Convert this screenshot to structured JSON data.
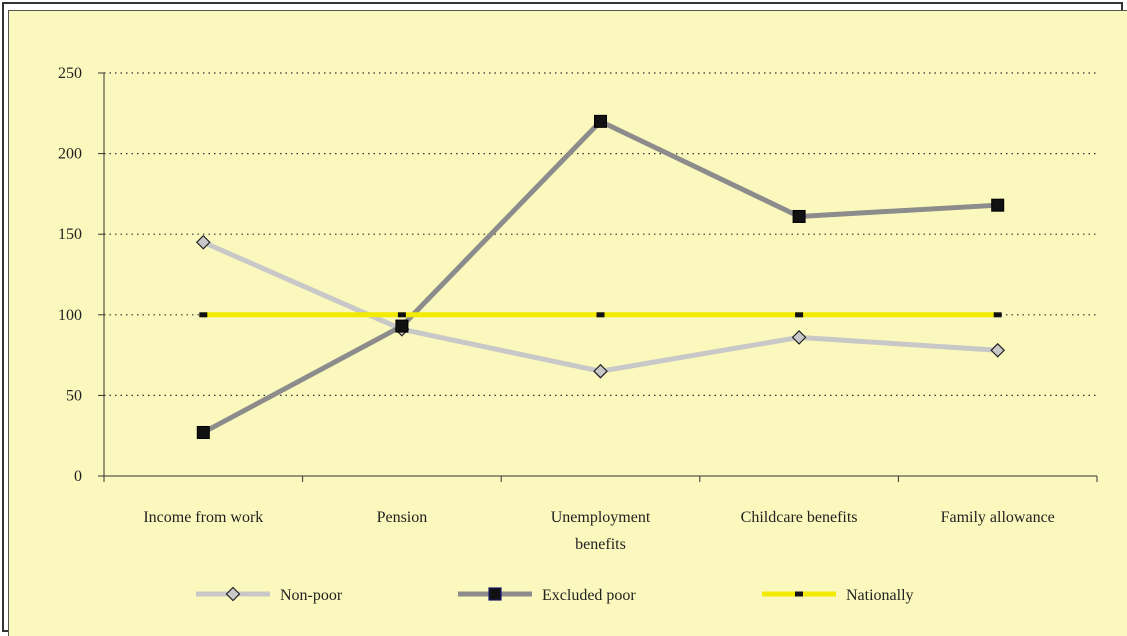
{
  "chart_data": {
    "type": "line",
    "categories": [
      [
        "Income from work"
      ],
      [
        "Pension"
      ],
      [
        "Unemployment",
        "benefits"
      ],
      [
        "Childcare benefits"
      ],
      [
        "Family allowance"
      ]
    ],
    "ylim": [
      0,
      250
    ],
    "yticks": [
      0,
      50,
      100,
      150,
      200,
      250
    ],
    "grid": true,
    "legend_position": "bottom",
    "series": [
      {
        "name": "Non-poor",
        "values": [
          145,
          91,
          65,
          86,
          78
        ],
        "color": "#c8c8c8",
        "marker": "diamond"
      },
      {
        "name": "Excluded poor",
        "values": [
          27,
          93,
          220,
          161,
          168
        ],
        "color": "#8c8c8c",
        "marker": "square"
      },
      {
        "name": "Nationally",
        "values": [
          100,
          100,
          100,
          100,
          100
        ],
        "color": "#f2ea00",
        "marker": "dash"
      }
    ],
    "colors": {
      "background": "#fbf8bd",
      "text": "#222222",
      "marker": "#111111"
    }
  }
}
